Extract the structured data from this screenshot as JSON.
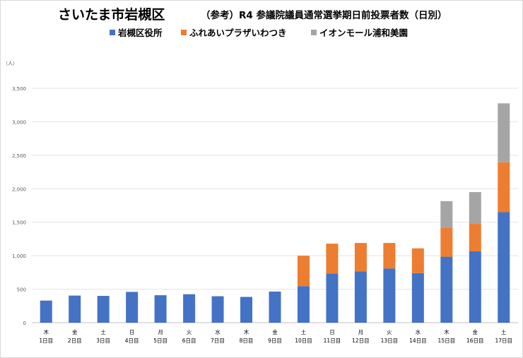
{
  "chart_data": {
    "type": "bar",
    "stacked": true,
    "title": "さいたま市岩槻区",
    "subtitle": "（参考）R4 参議院議員通常選挙期日前投票者数（日別）",
    "unit_label": "（人）",
    "legend_position": "top",
    "ylim": [
      0,
      3500
    ],
    "yticks": [
      0,
      500,
      1000,
      1500,
      2000,
      2500,
      3000,
      3500
    ],
    "ytick_labels": [
      "0",
      "500",
      "1,000",
      "1,500",
      "2,000",
      "2,500",
      "3,000",
      "3,500"
    ],
    "grid": true,
    "categories": [
      {
        "weekday": "木",
        "day": "1日目"
      },
      {
        "weekday": "金",
        "day": "2日目"
      },
      {
        "weekday": "土",
        "day": "3日目"
      },
      {
        "weekday": "日",
        "day": "4日目"
      },
      {
        "weekday": "月",
        "day": "5日目"
      },
      {
        "weekday": "火",
        "day": "6日目"
      },
      {
        "weekday": "水",
        "day": "7日目"
      },
      {
        "weekday": "木",
        "day": "8日目"
      },
      {
        "weekday": "金",
        "day": "9日目"
      },
      {
        "weekday": "土",
        "day": "10日目"
      },
      {
        "weekday": "日",
        "day": "11日目"
      },
      {
        "weekday": "月",
        "day": "12日目"
      },
      {
        "weekday": "火",
        "day": "13日目"
      },
      {
        "weekday": "水",
        "day": "14日目"
      },
      {
        "weekday": "木",
        "day": "15日目"
      },
      {
        "weekday": "金",
        "day": "16日目"
      },
      {
        "weekday": "土",
        "day": "17日目"
      }
    ],
    "series": [
      {
        "name": "岩槻区役所",
        "color": "#4472c4",
        "values": [
          330,
          405,
          400,
          460,
          410,
          425,
          395,
          385,
          465,
          545,
          735,
          765,
          810,
          740,
          985,
          1065,
          1650
        ]
      },
      {
        "name": "ふれあいプラザいわつき",
        "color": "#ed7d31",
        "values": [
          0,
          0,
          0,
          0,
          0,
          0,
          0,
          0,
          0,
          455,
          445,
          425,
          380,
          370,
          435,
          410,
          745
        ]
      },
      {
        "name": "イオンモール浦和美園",
        "color": "#a5a5a5",
        "values": [
          0,
          0,
          0,
          0,
          0,
          0,
          0,
          0,
          0,
          0,
          0,
          0,
          0,
          0,
          395,
          475,
          880
        ]
      }
    ]
  }
}
